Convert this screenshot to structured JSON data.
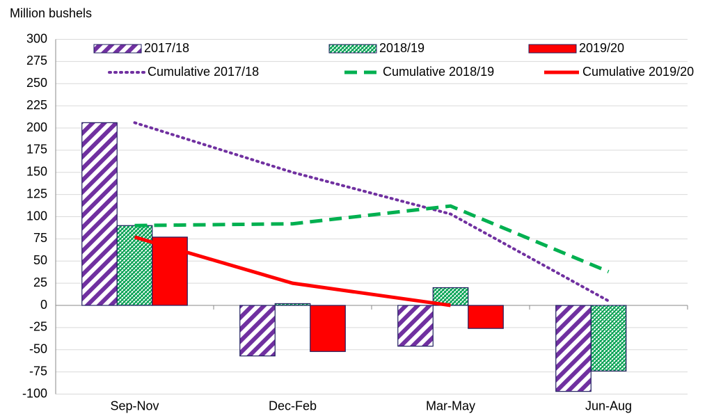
{
  "chart_data": {
    "type": "bar",
    "y_label": "Million bushels",
    "categories": [
      "Sep-Nov",
      "Dec-Feb",
      "Mar-May",
      "Jun-Aug"
    ],
    "ylim": [
      -100,
      300
    ],
    "yticks": [
      -100,
      -75,
      -50,
      -25,
      0,
      25,
      50,
      75,
      100,
      125,
      150,
      175,
      200,
      225,
      250,
      275,
      300
    ],
    "grid": true,
    "legend": "top",
    "series": [
      {
        "name": "2017/18",
        "type": "bar",
        "color": "#7030a0",
        "pattern": "stripes",
        "values": [
          206,
          -57,
          -46,
          -97
        ]
      },
      {
        "name": "2018/19",
        "type": "bar",
        "color": "#00a050",
        "pattern": "checks",
        "values": [
          90,
          2,
          20,
          -74
        ]
      },
      {
        "name": "2019/20",
        "type": "bar",
        "color": "#ff0000",
        "pattern": "solid",
        "values": [
          77,
          -52,
          -26,
          null
        ]
      },
      {
        "name": "Cumulative 2017/18",
        "type": "line",
        "color": "#7030a0",
        "dash": "dotted",
        "values": [
          206,
          150,
          103,
          5
        ]
      },
      {
        "name": "Cumulative 2018/19",
        "type": "line",
        "color": "#00b050",
        "dash": "dashed",
        "values": [
          90,
          92,
          112,
          38
        ]
      },
      {
        "name": "Cumulative 2019/20",
        "type": "line",
        "color": "#ff0000",
        "dash": "solid",
        "values": [
          77,
          25,
          0,
          null
        ]
      }
    ]
  }
}
